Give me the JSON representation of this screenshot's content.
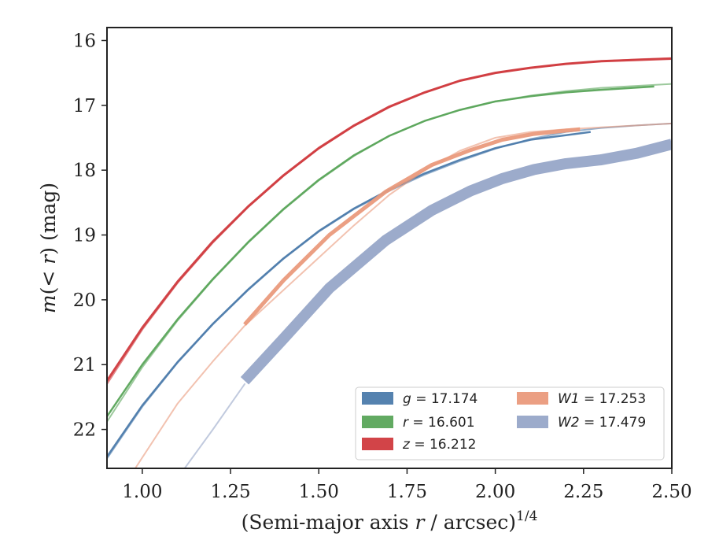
{
  "chart_data": {
    "type": "line",
    "title": "",
    "xlabel": "(Semi-major axis r / arcsec)",
    "xlabel_prefix": "(Semi-major axis ",
    "xlabel_var": "r",
    "xlabel_suffix": " / arcsec)",
    "xlabel_exponent": "1/4",
    "ylabel": "m(< r) (mag)",
    "ylabel_m": "m",
    "ylabel_mid": "(< ",
    "ylabel_r": "r",
    "ylabel_end": ") (mag)",
    "xlim": [
      0.9,
      2.5
    ],
    "ylim": [
      22.6,
      15.8
    ],
    "y_inverted": true,
    "x_ticks": [
      "1.00",
      "1.25",
      "1.50",
      "1.75",
      "2.00",
      "2.25",
      "2.50"
    ],
    "x_tick_values": [
      1.0,
      1.25,
      1.5,
      1.75,
      2.0,
      2.25,
      2.5
    ],
    "y_ticks": [
      "16",
      "17",
      "18",
      "19",
      "20",
      "21",
      "22"
    ],
    "y_tick_values": [
      16,
      17,
      18,
      19,
      20,
      21,
      22
    ],
    "grid": false,
    "legend_position": "lower-right",
    "series": [
      {
        "name": "g = 17.174",
        "label_var": "g",
        "label_value": "= 17.174",
        "color": "#4c7bab",
        "model_x": [
          0.9,
          1.0,
          1.1,
          1.2,
          1.3,
          1.4,
          1.5,
          1.6,
          1.7,
          1.8,
          1.9,
          2.0,
          2.1,
          2.2,
          2.3,
          2.4,
          2.5
        ],
        "model_y": [
          22.45,
          21.65,
          20.97,
          20.38,
          19.85,
          19.37,
          18.95,
          18.6,
          18.32,
          18.07,
          17.86,
          17.67,
          17.52,
          17.41,
          17.35,
          17.31,
          17.28
        ],
        "data_x": [
          0.9,
          1.0,
          1.1,
          1.2,
          1.3,
          1.4,
          1.5,
          1.6,
          1.7,
          1.8,
          1.9,
          2.0,
          2.1,
          2.2,
          2.27
        ],
        "data_y": [
          22.42,
          21.63,
          20.96,
          20.37,
          19.84,
          19.36,
          18.94,
          18.59,
          18.3,
          18.05,
          17.84,
          17.66,
          17.53,
          17.46,
          17.41
        ],
        "data_width": 2.5
      },
      {
        "name": "r = 16.601",
        "label_var": "r",
        "label_value": "= 16.601",
        "color": "#5aa55a",
        "model_x": [
          0.9,
          1.0,
          1.1,
          1.2,
          1.3,
          1.4,
          1.5,
          1.6,
          1.7,
          1.8,
          1.9,
          2.0,
          2.1,
          2.2,
          2.3,
          2.4,
          2.5
        ],
        "model_y": [
          21.88,
          21.04,
          20.32,
          19.69,
          19.12,
          18.61,
          18.16,
          17.78,
          17.47,
          17.24,
          17.07,
          16.94,
          16.85,
          16.78,
          16.73,
          16.7,
          16.67
        ],
        "data_x": [
          0.9,
          1.0,
          1.1,
          1.2,
          1.3,
          1.4,
          1.5,
          1.6,
          1.7,
          1.8,
          1.9,
          2.0,
          2.1,
          2.2,
          2.3,
          2.45
        ],
        "data_y": [
          21.8,
          21.0,
          20.3,
          19.68,
          19.11,
          18.6,
          18.15,
          17.77,
          17.47,
          17.24,
          17.07,
          16.94,
          16.86,
          16.8,
          16.76,
          16.71
        ],
        "data_width": 2.5
      },
      {
        "name": "z = 16.212",
        "label_var": "z",
        "label_value": "= 16.212",
        "color": "#d03a3e",
        "model_x": [
          0.9,
          1.0,
          1.1,
          1.2,
          1.3,
          1.4,
          1.5,
          1.6,
          1.7,
          1.8,
          1.9,
          2.0,
          2.1,
          2.2,
          2.3,
          2.4,
          2.5
        ],
        "model_y": [
          21.3,
          20.46,
          19.74,
          19.12,
          18.57,
          18.09,
          17.67,
          17.32,
          17.03,
          16.8,
          16.62,
          16.5,
          16.42,
          16.36,
          16.32,
          16.29,
          16.27
        ],
        "data_x": [
          0.9,
          1.0,
          1.1,
          1.2,
          1.3,
          1.4,
          1.5,
          1.6,
          1.7,
          1.8,
          1.9,
          2.0,
          2.1,
          2.2,
          2.3,
          2.5
        ],
        "data_y": [
          21.25,
          20.43,
          19.72,
          19.1,
          18.56,
          18.08,
          17.66,
          17.31,
          17.02,
          16.8,
          16.62,
          16.5,
          16.42,
          16.36,
          16.32,
          16.28
        ],
        "data_width": 3
      },
      {
        "name": "W1 = 17.253",
        "label_var": "W1",
        "label_value": "= 17.253",
        "color": "#ea9a7c",
        "model_x": [
          0.98,
          1.1,
          1.2,
          1.29,
          1.4,
          1.5,
          1.6,
          1.7,
          1.8,
          1.9,
          2.0,
          2.1,
          2.2,
          2.3,
          2.4,
          2.5
        ],
        "model_y": [
          22.6,
          21.6,
          20.95,
          20.4,
          19.85,
          19.35,
          18.85,
          18.38,
          18.0,
          17.7,
          17.5,
          17.41,
          17.37,
          17.34,
          17.31,
          17.28
        ],
        "data_x": [
          1.29,
          1.4,
          1.53,
          1.69,
          1.82,
          1.93,
          2.02,
          2.11,
          2.2,
          2.24
        ],
        "data_y": [
          20.38,
          19.7,
          19.0,
          18.33,
          17.92,
          17.69,
          17.53,
          17.44,
          17.39,
          17.37
        ],
        "data_width": 5
      },
      {
        "name": "W2 = 17.479",
        "label_var": "W2",
        "label_value": "= 17.479",
        "color": "#97a6c8",
        "model_x": [
          1.12,
          1.2,
          1.29
        ],
        "model_y": [
          22.6,
          22.0,
          21.3
        ],
        "data_x": [
          1.29,
          1.4,
          1.53,
          1.69,
          1.82,
          1.93,
          2.02,
          2.11,
          2.2,
          2.3,
          2.4,
          2.5
        ],
        "data_y": [
          21.25,
          20.6,
          19.82,
          19.08,
          18.62,
          18.32,
          18.13,
          17.99,
          17.9,
          17.84,
          17.74,
          17.6
        ],
        "data_width": 14
      }
    ]
  }
}
